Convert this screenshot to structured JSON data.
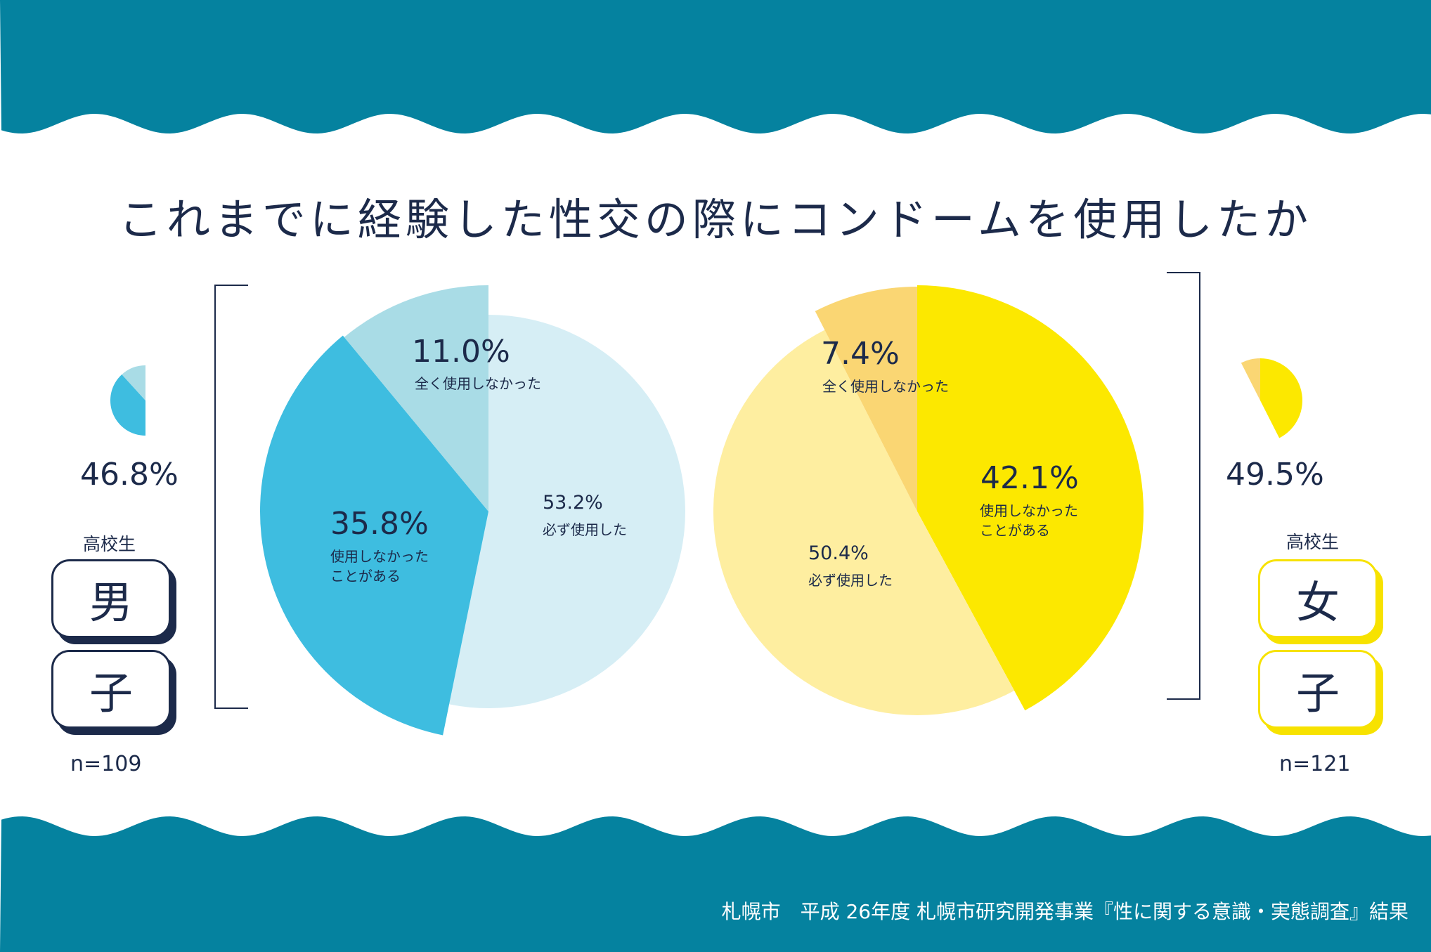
{
  "title": "これまでに経験した性交の際にコンドームを使用したか",
  "source": "札幌市　平成 26年度 札幌市研究開発事業『性に関する意識・実態調査』結果",
  "colors": {
    "wave": "#05829f",
    "navy": "#1c2a4a",
    "boy_always": "#d6eef5",
    "boy_sometimes": "#3ebde0",
    "boy_never": "#a9dce6",
    "girl_always": "#feeea0",
    "girl_sometimes": "#fce800",
    "girl_never": "#fad673"
  },
  "chart_data": [
    {
      "type": "pie",
      "group": "boys",
      "grade": "高校生",
      "gender_chars": [
        "男",
        "子"
      ],
      "n_label": "n=109",
      "mini_pct": "46.8%",
      "slices": [
        {
          "key": "sometimes",
          "value": 35.8,
          "pct": "35.8%",
          "label_lines": [
            "使用しなかった",
            "ことがある"
          ]
        },
        {
          "key": "never",
          "value": 11.0,
          "pct": "11.0%",
          "label_lines": [
            "全く使用しなかった"
          ]
        },
        {
          "key": "always",
          "value": 53.2,
          "pct": "53.2%",
          "label_lines": [
            "必ず使用した"
          ]
        }
      ]
    },
    {
      "type": "pie",
      "group": "girls",
      "grade": "高校生",
      "gender_chars": [
        "女",
        "子"
      ],
      "n_label": "n=121",
      "mini_pct": "49.5%",
      "slices": [
        {
          "key": "sometimes",
          "value": 42.1,
          "pct": "42.1%",
          "label_lines": [
            "使用しなかった",
            "ことがある"
          ]
        },
        {
          "key": "always",
          "value": 50.4,
          "pct": "50.4%",
          "label_lines": [
            "必ず使用した"
          ]
        },
        {
          "key": "never",
          "value": 7.4,
          "pct": "7.4%",
          "label_lines": [
            "全く使用しなかった"
          ]
        }
      ]
    }
  ]
}
